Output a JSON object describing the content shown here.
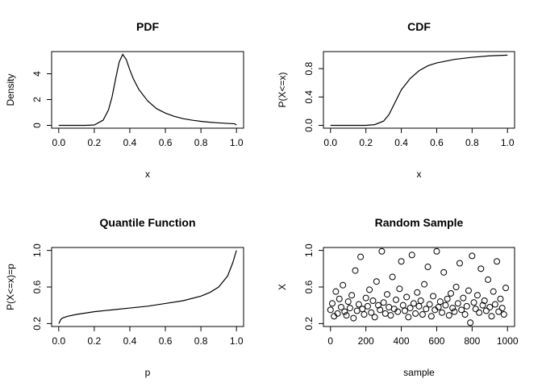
{
  "chart_data": [
    {
      "type": "line",
      "title": "PDF",
      "x_label": "x",
      "y_label": "Density",
      "x": [
        0,
        0.05,
        0.1,
        0.15,
        0.2,
        0.25,
        0.28,
        0.3,
        0.32,
        0.34,
        0.36,
        0.38,
        0.4,
        0.42,
        0.45,
        0.5,
        0.55,
        0.6,
        0.65,
        0.7,
        0.75,
        0.8,
        0.85,
        0.9,
        0.95,
        0.99,
        1.0
      ],
      "values": [
        0,
        0,
        0,
        0,
        0.03,
        0.4,
        1.2,
        2.2,
        3.6,
        4.9,
        5.5,
        5.1,
        4.3,
        3.6,
        2.8,
        1.9,
        1.3,
        0.95,
        0.7,
        0.52,
        0.4,
        0.31,
        0.24,
        0.19,
        0.15,
        0.12,
        0.02
      ],
      "color": "#000000",
      "xlim": [
        -0.04,
        1.04
      ],
      "ylim": [
        -0.22,
        5.72
      ],
      "xticks": [
        {
          "value": 0,
          "label": "0.0"
        },
        0.2,
        0.4,
        0.6,
        0.8,
        {
          "value": 1,
          "label": "1.0"
        }
      ],
      "yticks": [
        0,
        2,
        4
      ]
    },
    {
      "type": "line",
      "title": "CDF",
      "x_label": "x",
      "y_label": "P(X<=x)",
      "x": [
        0,
        0.1,
        0.2,
        0.25,
        0.3,
        0.33,
        0.36,
        0.4,
        0.45,
        0.5,
        0.55,
        0.6,
        0.7,
        0.8,
        0.9,
        1.0
      ],
      "values": [
        0,
        0,
        0,
        0.01,
        0.06,
        0.15,
        0.3,
        0.5,
        0.66,
        0.77,
        0.84,
        0.88,
        0.93,
        0.96,
        0.98,
        0.99
      ],
      "color": "#000000",
      "xlim": [
        -0.04,
        1.04
      ],
      "ylim": [
        -0.04,
        1.04
      ],
      "xticks": [
        {
          "value": 0,
          "label": "0.0"
        },
        0.2,
        0.4,
        0.6,
        0.8,
        {
          "value": 1,
          "label": "1.0"
        }
      ],
      "yticks": [
        {
          "value": 0,
          "label": "0.0"
        },
        0.4,
        0.8
      ]
    },
    {
      "type": "line",
      "title": "Quantile Function",
      "x_label": "p",
      "y_label": "P(X<=x)=p",
      "x": [
        0.001,
        0.01,
        0.02,
        0.05,
        0.1,
        0.2,
        0.3,
        0.4,
        0.5,
        0.6,
        0.7,
        0.8,
        0.85,
        0.9,
        0.95,
        0.98,
        1.0
      ],
      "values": [
        0.2,
        0.24,
        0.26,
        0.28,
        0.3,
        0.33,
        0.35,
        0.37,
        0.39,
        0.42,
        0.45,
        0.5,
        0.54,
        0.6,
        0.72,
        0.87,
        1.0
      ],
      "color": "#000000",
      "xlim": [
        -0.04,
        1.04
      ],
      "ylim": [
        0.168,
        1.032
      ],
      "xticks": [
        {
          "value": 0,
          "label": "0.0"
        },
        0.2,
        0.4,
        0.6,
        0.8,
        {
          "value": 1,
          "label": "1.0"
        }
      ],
      "yticks": [
        0.2,
        0.6,
        {
          "value": 1,
          "label": "1.0"
        }
      ]
    },
    {
      "type": "scatter",
      "title": "Random Sample",
      "x_label": "sample",
      "y_label": "X",
      "x": [
        0,
        10,
        20,
        30,
        40,
        50,
        60,
        70,
        80,
        90,
        100,
        110,
        120,
        130,
        140,
        150,
        160,
        170,
        180,
        190,
        200,
        210,
        220,
        230,
        240,
        250,
        260,
        270,
        280,
        290,
        300,
        310,
        320,
        330,
        340,
        350,
        360,
        370,
        380,
        390,
        400,
        410,
        420,
        430,
        440,
        450,
        460,
        470,
        480,
        490,
        500,
        510,
        520,
        530,
        540,
        550,
        560,
        570,
        580,
        590,
        600,
        610,
        620,
        630,
        640,
        650,
        660,
        670,
        680,
        690,
        700,
        710,
        720,
        730,
        740,
        750,
        760,
        770,
        780,
        790,
        800,
        810,
        820,
        830,
        840,
        850,
        860,
        870,
        880,
        890,
        900,
        910,
        920,
        930,
        940,
        950,
        960,
        970,
        980,
        990
      ],
      "values": [
        0.35,
        0.42,
        0.28,
        0.55,
        0.31,
        0.47,
        0.38,
        0.62,
        0.33,
        0.29,
        0.44,
        0.37,
        0.51,
        0.26,
        0.78,
        0.34,
        0.41,
        0.93,
        0.36,
        0.3,
        0.48,
        0.39,
        0.57,
        0.32,
        0.45,
        0.27,
        0.66,
        0.4,
        0.35,
        0.99,
        0.43,
        0.31,
        0.52,
        0.38,
        0.29,
        0.71,
        0.36,
        0.46,
        0.33,
        0.58,
        0.88,
        0.4,
        0.34,
        0.49,
        0.27,
        0.37,
        0.95,
        0.42,
        0.31,
        0.54,
        0.39,
        0.45,
        0.3,
        0.63,
        0.36,
        0.82,
        0.41,
        0.28,
        0.5,
        0.35,
        0.99,
        0.38,
        0.44,
        0.32,
        0.76,
        0.4,
        0.47,
        0.29,
        0.53,
        0.37,
        0.33,
        0.6,
        0.42,
        0.86,
        0.35,
        0.48,
        0.3,
        0.39,
        0.56,
        0.21,
        0.94,
        0.43,
        0.36,
        0.51,
        0.32,
        0.8,
        0.4,
        0.45,
        0.34,
        0.68,
        0.38,
        0.28,
        0.55,
        0.41,
        0.88,
        0.33,
        0.47,
        0.37,
        0.3,
        0.59
      ],
      "color": "#000000",
      "xlim": [
        -40,
        1040
      ],
      "ylim": [
        0.168,
        1.032
      ],
      "xticks": [
        0,
        200,
        400,
        600,
        800,
        1000
      ],
      "yticks": [
        0.2,
        0.6,
        {
          "value": 1,
          "label": "1.0"
        }
      ]
    }
  ]
}
